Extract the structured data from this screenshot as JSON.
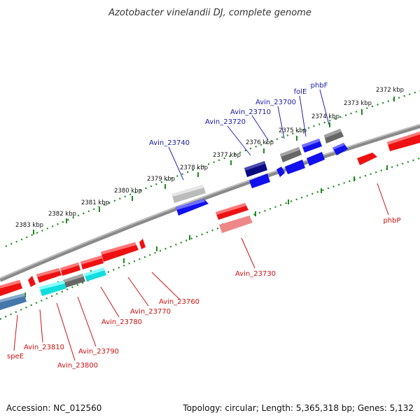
{
  "title": "Azotobacter vinelandii DJ, complete genome",
  "footer": {
    "accession": "Accession: NC_012560",
    "summary": "Topology: circular; Length: 5,365,318 bp; Genes: 5,132"
  },
  "scale": {
    "ticks": [
      "2372 kbp",
      "2373 kbp",
      "2374 kbp",
      "2375 kbp",
      "2376 kbp",
      "2377 kbp",
      "2378 kbp",
      "2379 kbp",
      "2380 kbp",
      "2381 kbp",
      "2382 kbp",
      "2383 kbp"
    ]
  },
  "genes_top": [
    {
      "label": "phbF",
      "color": "#1111ee"
    },
    {
      "label": "folE",
      "color": "#1111ee"
    },
    {
      "label": "Avin_23700",
      "color": "#1111ee"
    },
    {
      "label": "Avin_23710",
      "color": "#1111ee"
    },
    {
      "label": "Avin_23720",
      "color": "#0a0a80"
    },
    {
      "label": "Avin_23740",
      "color": "#1111ee"
    }
  ],
  "genes_bottom": [
    {
      "label": "phbP",
      "color": "#ee1111"
    },
    {
      "label": "Avin_23730",
      "color": "#ee1111"
    },
    {
      "label": "Avin_23760",
      "color": "#ee1111"
    },
    {
      "label": "Avin_23770",
      "color": "#ee1111"
    },
    {
      "label": "Avin_23780",
      "color": "#ee1111"
    },
    {
      "label": "Avin_23790",
      "color": "#ee1111"
    },
    {
      "label": "Avin_23800",
      "color": "#ee1111"
    },
    {
      "label": "Avin_23810",
      "color": "#ee1111"
    },
    {
      "label": "speE",
      "color": "#ee1111"
    }
  ],
  "colors": {
    "forward_gene": "#ee1111",
    "reverse_gene": "#1111ee",
    "dark_reverse": "#0a0a80",
    "steelblue": "#4477aa",
    "cyan": "#11dddd",
    "gray": "#666666",
    "lightgray": "#bbbbbb",
    "pink": "#ee8888",
    "backbone": "#888888",
    "dots": "#228822"
  }
}
